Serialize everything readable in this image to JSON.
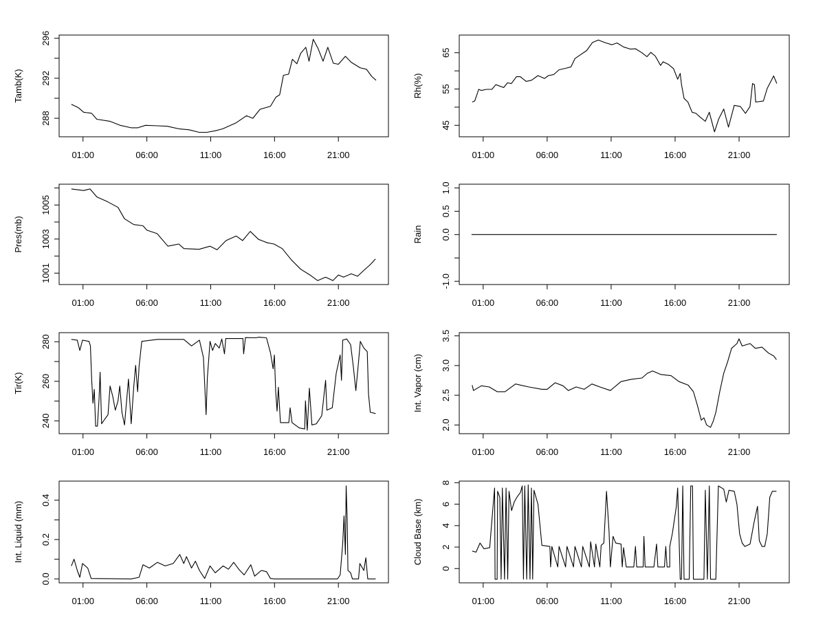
{
  "chart_data": [
    {
      "type": "line",
      "title": "",
      "xlabel": "",
      "ylabel": "Tamb(K)",
      "xlim_hours": [
        -0.87,
        24.92
      ],
      "ylim": [
        286.15,
        296.32
      ],
      "xticks_hours": [
        1,
        6,
        11,
        16,
        21
      ],
      "xtick_labels": [
        "01:00",
        "06:00",
        "11:00",
        "16:00",
        "21:00"
      ],
      "yticks": [
        288,
        290,
        292,
        294,
        296
      ],
      "ytick_labels": [
        "288",
        "",
        "292",
        "",
        "296"
      ],
      "x": [
        0.09,
        0.65,
        1.05,
        1.67,
        2.08,
        3.1,
        3.9,
        4.76,
        5.3,
        5.9,
        6.8,
        7.6,
        8.5,
        9.3,
        10.1,
        10.7,
        11.35,
        11.95,
        13.0,
        13.8,
        14.3,
        14.86,
        15.68,
        16.1,
        16.4,
        16.7,
        17.1,
        17.4,
        17.75,
        18.05,
        18.45,
        18.7,
        19.03,
        19.4,
        19.8,
        20.17,
        20.6,
        21.0,
        21.55,
        22.0,
        22.7,
        23.2,
        23.6,
        23.95
      ],
      "y": [
        289.4,
        289.05,
        288.6,
        288.5,
        287.9,
        287.7,
        287.3,
        287.05,
        287.05,
        287.3,
        287.25,
        287.2,
        286.95,
        286.85,
        286.6,
        286.6,
        286.75,
        286.95,
        287.55,
        288.25,
        288.0,
        288.9,
        289.2,
        290.1,
        290.35,
        292.3,
        292.4,
        293.9,
        293.45,
        294.5,
        295.1,
        293.7,
        295.9,
        295.0,
        293.7,
        295.1,
        293.5,
        293.4,
        294.2,
        293.6,
        293.05,
        292.9,
        292.2,
        291.8
      ]
    },
    {
      "type": "line",
      "title": "",
      "xlabel": "",
      "ylabel": "Rh(%)",
      "xlim_hours": [
        -0.87,
        24.92
      ],
      "ylim": [
        41.84,
        69.87
      ],
      "xticks_hours": [
        1,
        6,
        11,
        16,
        21
      ],
      "xtick_labels": [
        "01:00",
        "06:00",
        "11:00",
        "16:00",
        "21:00"
      ],
      "yticks": [
        45,
        50,
        55,
        60,
        65
      ],
      "ytick_labels": [
        "45",
        "",
        "55",
        "",
        "65"
      ],
      "x": [
        0.14,
        0.34,
        0.65,
        0.86,
        1.27,
        1.68,
        1.99,
        2.6,
        2.9,
        3.2,
        3.6,
        3.9,
        4.36,
        4.77,
        5.28,
        5.8,
        6.1,
        6.52,
        6.93,
        7.44,
        7.86,
        8.17,
        8.58,
        9.09,
        9.54,
        10.0,
        10.5,
        11.05,
        11.46,
        11.97,
        12.5,
        12.9,
        13.4,
        13.8,
        14.1,
        14.45,
        14.86,
        15.06,
        15.47,
        15.88,
        16.2,
        16.4,
        16.5,
        16.7,
        17.0,
        17.33,
        17.63,
        17.94,
        18.36,
        18.67,
        19.08,
        19.4,
        19.8,
        20.17,
        20.62,
        21.1,
        21.5,
        21.85,
        22.05,
        22.2,
        22.3,
        22.9,
        23.2,
        23.7,
        23.95
      ],
      "y": [
        51.4,
        51.7,
        54.9,
        54.6,
        54.9,
        54.9,
        56.2,
        55.4,
        56.7,
        56.5,
        58.4,
        58.4,
        57.1,
        57.4,
        58.7,
        57.9,
        58.7,
        59.0,
        60.3,
        60.7,
        61.1,
        63.4,
        64.4,
        65.6,
        67.8,
        68.5,
        67.8,
        67.2,
        67.7,
        66.6,
        66.0,
        66.1,
        65.0,
        63.9,
        65.1,
        64.1,
        61.5,
        62.5,
        61.8,
        60.6,
        57.7,
        59.3,
        56.2,
        52.4,
        51.4,
        48.6,
        48.3,
        47.3,
        46.1,
        48.6,
        43.2,
        46.7,
        49.5,
        44.5,
        50.5,
        50.2,
        48.3,
        50.2,
        56.5,
        56.2,
        51.4,
        51.7,
        55.2,
        58.6,
        56.5
      ]
    },
    {
      "type": "line",
      "title": "",
      "xlabel": "",
      "ylabel": "Pres(mb)",
      "xlim_hours": [
        -0.87,
        24.92
      ],
      "ylim": [
        1000.33,
        1006.22
      ],
      "xticks_hours": [
        1,
        6,
        11,
        16,
        21
      ],
      "xtick_labels": [
        "01:00",
        "06:00",
        "11:00",
        "16:00",
        "21:00"
      ],
      "yticks": [
        1001,
        1002,
        1003,
        1004,
        1005,
        1006
      ],
      "ytick_labels": [
        "1001",
        "",
        "1003",
        "",
        "1005",
        ""
      ],
      "x": [
        0.09,
        1.05,
        1.55,
        2.09,
        2.9,
        3.74,
        4.25,
        4.97,
        5.7,
        6.0,
        6.8,
        7.65,
        8.5,
        8.9,
        10.1,
        10.95,
        11.5,
        12.2,
        13.0,
        13.5,
        14.1,
        14.75,
        15.45,
        15.95,
        16.6,
        17.33,
        18.05,
        18.77,
        19.38,
        20.0,
        20.57,
        21.0,
        21.4,
        22.0,
        22.5,
        22.99,
        23.5,
        23.9
      ],
      "y": [
        1005.94,
        1005.85,
        1005.94,
        1005.47,
        1005.2,
        1004.86,
        1004.19,
        1003.85,
        1003.78,
        1003.52,
        1003.32,
        1002.58,
        1002.71,
        1002.44,
        1002.4,
        1002.58,
        1002.37,
        1002.91,
        1003.18,
        1002.91,
        1003.45,
        1002.98,
        1002.78,
        1002.71,
        1002.44,
        1001.77,
        1001.23,
        1000.89,
        1000.56,
        1000.76,
        1000.56,
        1000.89,
        1000.76,
        1000.96,
        1000.82,
        1001.16,
        1001.5,
        1001.83
      ]
    },
    {
      "type": "line",
      "title": "",
      "xlabel": "",
      "ylabel": "Rain",
      "xlim_hours": [
        -0.87,
        24.92
      ],
      "ylim": [
        -1.07,
        1.08
      ],
      "xticks_hours": [
        1,
        6,
        11,
        16,
        21
      ],
      "xtick_labels": [
        "01:00",
        "06:00",
        "11:00",
        "16:00",
        "21:00"
      ],
      "yticks": [
        -1.0,
        -0.5,
        0.0,
        0.5,
        1.0
      ],
      "ytick_labels": [
        "-1.0",
        "",
        "0.0",
        "0.5",
        "1.0"
      ],
      "x": [
        0.09,
        23.95
      ],
      "y": [
        0,
        0
      ]
    },
    {
      "type": "line",
      "title": "",
      "xlabel": "",
      "ylabel": "Tir(K)",
      "xlim_hours": [
        -0.87,
        24.92
      ],
      "ylim": [
        233.5,
        284.6
      ],
      "xticks_hours": [
        1,
        6,
        11,
        16,
        21
      ],
      "xtick_labels": [
        "01:00",
        "06:00",
        "11:00",
        "16:00",
        "21:00"
      ],
      "yticks": [
        240,
        250,
        260,
        270,
        280
      ],
      "ytick_labels": [
        "240",
        "",
        "260",
        "",
        "280"
      ],
      "x": [
        0.09,
        0.55,
        0.75,
        0.96,
        1.47,
        1.58,
        1.68,
        1.78,
        1.88,
        1.99,
        2.13,
        2.26,
        2.34,
        2.46,
        2.7,
        2.96,
        3.12,
        3.33,
        3.53,
        3.74,
        3.88,
        4.05,
        4.25,
        4.56,
        4.77,
        4.97,
        5.12,
        5.28,
        5.39,
        5.6,
        6.83,
        8.89,
        9.5,
        10.12,
        10.43,
        10.64,
        10.74,
        10.95,
        11.15,
        11.36,
        11.67,
        11.87,
        12.08,
        12.18,
        13.52,
        13.58,
        13.72,
        14.55,
        14.75,
        15.37,
        15.68,
        15.89,
        15.99,
        16.09,
        16.2,
        16.3,
        16.46,
        17.12,
        17.22,
        17.37,
        17.94,
        18.36,
        18.42,
        18.56,
        18.73,
        18.93,
        19.28,
        19.7,
        20.0,
        20.1,
        20.52,
        20.83,
        21.14,
        21.24,
        21.34,
        21.65,
        21.96,
        22.17,
        22.37,
        22.58,
        22.72,
        22.99,
        23.26,
        23.36,
        23.5,
        23.92
      ],
      "y": [
        281.2,
        280.8,
        275.6,
        280.8,
        280.2,
        277.9,
        260.5,
        248.9,
        255.9,
        237.3,
        237.3,
        251.3,
        264.6,
        238.5,
        240.8,
        243.1,
        257.6,
        252.4,
        245.4,
        250.0,
        257.6,
        244.3,
        237.9,
        261.1,
        238.5,
        257.0,
        268.1,
        254.7,
        267.5,
        280.2,
        281.2,
        281.2,
        277.9,
        280.8,
        272.1,
        243.1,
        261.7,
        280.2,
        275.6,
        279.1,
        276.8,
        281.4,
        273.9,
        281.6,
        281.6,
        273.9,
        282.1,
        282.0,
        282.3,
        282.0,
        274.4,
        266.3,
        273.3,
        254.7,
        244.9,
        257.0,
        239.1,
        239.1,
        246.6,
        239.1,
        236.4,
        235.9,
        250.1,
        235.2,
        256.5,
        237.9,
        238.5,
        242.6,
        260.5,
        245.4,
        246.6,
        264.0,
        273.3,
        260.5,
        280.8,
        281.4,
        278.5,
        267.5,
        255.3,
        269.8,
        280.2,
        276.8,
        275.0,
        253.6,
        244.3,
        243.7
      ]
    },
    {
      "type": "line",
      "title": "",
      "xlabel": "",
      "ylabel": "Int. Vapor (cm)",
      "xlim_hours": [
        -0.87,
        24.92
      ],
      "ylim": [
        1.853,
        3.554
      ],
      "xticks_hours": [
        1,
        6,
        11,
        16,
        21
      ],
      "xtick_labels": [
        "01:00",
        "06:00",
        "11:00",
        "16:00",
        "21:00"
      ],
      "yticks": [
        2.0,
        2.5,
        3.0,
        3.5
      ],
      "ytick_labels": [
        "2.0",
        "2.5",
        "3.0",
        "3.5"
      ],
      "x": [
        0.14,
        0.24,
        0.86,
        1.47,
        2.09,
        2.71,
        3.53,
        4.56,
        5.59,
        6.0,
        6.62,
        7.24,
        7.65,
        8.27,
        8.89,
        9.5,
        10.12,
        10.94,
        11.77,
        12.6,
        13.41,
        13.83,
        14.24,
        14.86,
        15.68,
        16.3,
        17.02,
        17.43,
        17.74,
        18.05,
        18.25,
        18.46,
        18.77,
        18.97,
        19.18,
        19.49,
        19.8,
        20.1,
        20.41,
        20.83,
        20.99,
        21.24,
        21.86,
        22.27,
        22.79,
        23.3,
        23.71,
        23.92
      ],
      "y": [
        2.67,
        2.58,
        2.66,
        2.64,
        2.56,
        2.56,
        2.69,
        2.64,
        2.6,
        2.6,
        2.71,
        2.66,
        2.58,
        2.64,
        2.6,
        2.69,
        2.64,
        2.58,
        2.73,
        2.77,
        2.79,
        2.87,
        2.91,
        2.85,
        2.83,
        2.73,
        2.67,
        2.56,
        2.33,
        2.08,
        2.12,
        2.0,
        1.96,
        2.06,
        2.21,
        2.56,
        2.87,
        3.06,
        3.29,
        3.37,
        3.45,
        3.33,
        3.37,
        3.29,
        3.31,
        3.21,
        3.16,
        3.1
      ]
    },
    {
      "type": "line",
      "title": "",
      "xlabel": "",
      "ylabel": "Int. Liquid (mm)",
      "xlim_hours": [
        -0.87,
        24.92
      ],
      "ylim": [
        -0.02,
        0.497
      ],
      "xticks_hours": [
        1,
        6,
        11,
        16,
        21
      ],
      "xtick_labels": [
        "01:00",
        "06:00",
        "11:00",
        "16:00",
        "21:00"
      ],
      "yticks": [
        0.0,
        0.1,
        0.2,
        0.3,
        0.4
      ],
      "ytick_labels": [
        "0.0",
        "",
        "0.2",
        "",
        "0.4"
      ],
      "x": [
        0.09,
        0.3,
        0.55,
        0.75,
        0.96,
        1.37,
        1.64,
        4.77,
        5.39,
        5.7,
        6.2,
        6.83,
        7.44,
        8.06,
        8.58,
        8.89,
        9.1,
        9.5,
        9.8,
        10.12,
        10.53,
        10.95,
        11.36,
        11.97,
        12.39,
        12.8,
        13.2,
        13.62,
        14.14,
        14.44,
        14.96,
        15.37,
        15.68,
        15.99,
        20.93,
        21.14,
        21.34,
        21.44,
        21.55,
        21.61,
        21.69,
        21.75,
        21.96,
        22.1,
        22.58,
        22.68,
        22.99,
        23.15,
        23.3,
        23.92
      ],
      "y": [
        0.066,
        0.1,
        0.043,
        0.008,
        0.078,
        0.055,
        0.002,
        0,
        0.008,
        0.072,
        0.055,
        0.084,
        0.066,
        0.078,
        0.124,
        0.078,
        0.113,
        0.055,
        0.09,
        0.043,
        0.002,
        0.066,
        0.031,
        0.066,
        0.049,
        0.084,
        0.049,
        0.02,
        0.072,
        0.014,
        0.043,
        0.037,
        0.002,
        0,
        0,
        0.02,
        0.18,
        0.32,
        0.124,
        0.473,
        0.3,
        0.043,
        0.031,
        0,
        0,
        0.078,
        0.043,
        0.107,
        0,
        0
      ]
    },
    {
      "type": "line",
      "title": "",
      "xlabel": "",
      "ylabel": "Cloud Base (km)",
      "xlim_hours": [
        -0.87,
        24.92
      ],
      "ylim": [
        -1.33,
        8.15
      ],
      "xticks_hours": [
        1,
        6,
        11,
        16,
        21
      ],
      "xtick_labels": [
        "01:00",
        "06:00",
        "11:00",
        "16:00",
        "21:00"
      ],
      "yticks": [
        0,
        2,
        4,
        6,
        8
      ],
      "ytick_labels": [
        "0",
        "2",
        "4",
        "6",
        "8"
      ],
      "x": [
        0.14,
        0.44,
        0.75,
        1.06,
        1.51,
        1.68,
        1.89,
        1.93,
        2.09,
        2.13,
        2.3,
        2.4,
        2.5,
        2.67,
        2.79,
        2.92,
        3.02,
        3.22,
        3.43,
        3.64,
        3.91,
        4.05,
        4.15,
        4.25,
        4.4,
        4.52,
        4.66,
        4.77,
        4.87,
        4.97,
        5.28,
        5.59,
        6.21,
        6.27,
        6.37,
        6.83,
        6.93,
        7.44,
        7.55,
        8.06,
        8.17,
        8.68,
        8.78,
        9.3,
        9.4,
        9.7,
        9.8,
        10.12,
        10.22,
        10.43,
        10.64,
        10.84,
        10.94,
        11.15,
        11.36,
        11.77,
        11.87,
        11.97,
        12.18,
        12.77,
        12.9,
        13.0,
        13.5,
        13.56,
        13.66,
        14.34,
        14.55,
        14.65,
        15.17,
        15.27,
        15.37,
        15.58,
        15.58,
        15.78,
        16.1,
        16.2,
        16.4,
        16.5,
        16.6,
        16.7,
        17.1,
        17.22,
        17.36,
        17.43,
        18.25,
        18.36,
        18.52,
        18.67,
        18.77,
        19.18,
        19.38,
        19.8,
        20.0,
        20.21,
        20.62,
        20.83,
        21.04,
        21.24,
        21.45,
        21.86,
        22.17,
        22.44,
        22.58,
        22.79,
        23.0,
        23.2,
        23.4,
        23.6,
        23.92
      ],
      "y": [
        1.63,
        1.53,
        2.38,
        1.85,
        1.95,
        4.5,
        7.5,
        -1,
        -1,
        7.2,
        6.65,
        -1,
        7.5,
        -1,
        7.5,
        -1,
        7.2,
        5.4,
        6.2,
        6.65,
        7.1,
        7.7,
        -1,
        7.7,
        -1,
        7.8,
        -1,
        7.5,
        -1,
        7.3,
        6.0,
        2.17,
        2.06,
        0.15,
        2.06,
        0.15,
        2.06,
        0.15,
        2.06,
        0.15,
        2.06,
        0.15,
        2.06,
        0.15,
        2.5,
        0.15,
        2.28,
        0.15,
        2.17,
        2.38,
        7.2,
        3.45,
        0.15,
        3.0,
        2.38,
        2.28,
        0.15,
        1.95,
        0.15,
        0.15,
        2.06,
        0.15,
        0.15,
        3.0,
        0.15,
        0.15,
        2.28,
        0.15,
        0.15,
        2.06,
        0.15,
        0.15,
        2.06,
        3.24,
        5.8,
        7.5,
        -1,
        -1,
        7.7,
        -1,
        -1,
        7.7,
        7.7,
        -1,
        -1,
        7.3,
        -1,
        7.7,
        -1,
        -1,
        7.7,
        7.4,
        6.2,
        7.3,
        7.2,
        6.0,
        3.24,
        2.38,
        2.06,
        2.28,
        4.3,
        5.8,
        2.6,
        2.06,
        2.06,
        3.24,
        6.65,
        7.2,
        7.2
      ]
    }
  ]
}
